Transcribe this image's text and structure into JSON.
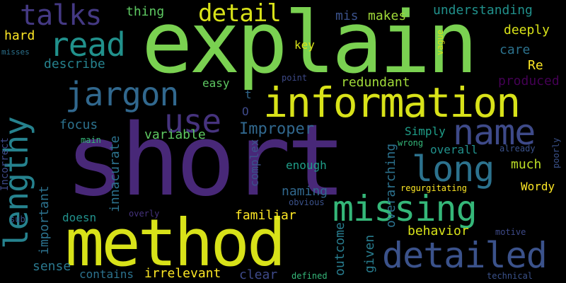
{
  "words": [
    {
      "id": "short",
      "text": "short",
      "color": "#482878"
    },
    {
      "id": "explain",
      "text": "explain",
      "color": "#7ad151"
    },
    {
      "id": "method",
      "text": "method",
      "color": "#d8e219"
    },
    {
      "id": "information",
      "text": "information",
      "color": "#d8e219"
    },
    {
      "id": "missing",
      "text": "missing",
      "color": "#35b779"
    },
    {
      "id": "detailed",
      "text": "detailed",
      "color": "#3b528b"
    },
    {
      "id": "name",
      "text": "name",
      "color": "#3e4a89"
    },
    {
      "id": "lengthy",
      "text": "lengthy",
      "color": "#26828e"
    },
    {
      "id": "jargon",
      "text": "jargon",
      "color": "#31688e"
    },
    {
      "id": "long",
      "text": "long",
      "color": "#2c728e"
    },
    {
      "id": "use",
      "text": "use",
      "color": "#46337e"
    },
    {
      "id": "read",
      "text": "read",
      "color": "#21918c"
    },
    {
      "id": "talks",
      "text": "talks",
      "color": "#443983"
    },
    {
      "id": "detail",
      "text": "detail",
      "color": "#d8e219"
    },
    {
      "id": "understanding",
      "text": "understanding",
      "color": "#21918c"
    },
    {
      "id": "deeply",
      "text": "deeply",
      "color": "#d8e219"
    },
    {
      "id": "makes",
      "text": "makes",
      "color": "#a0da39"
    },
    {
      "id": "mis",
      "text": "mis",
      "color": "#3b528b"
    },
    {
      "id": "thing",
      "text": "thing",
      "color": "#5ec962"
    },
    {
      "id": "hard",
      "text": "hard",
      "color": "#fde725"
    },
    {
      "id": "describe",
      "text": "describe",
      "color": "#26828e"
    },
    {
      "id": "misses",
      "text": "misses",
      "color": "#2c728e"
    },
    {
      "id": "key",
      "text": "key",
      "color": "#d8e219"
    },
    {
      "id": "vague",
      "text": "vague",
      "color": "#d8e219"
    },
    {
      "id": "care",
      "text": "care",
      "color": "#2c728e"
    },
    {
      "id": "Re",
      "text": "Re",
      "color": "#fde725"
    },
    {
      "id": "produced",
      "text": "produced",
      "color": "#440154"
    },
    {
      "id": "redundant",
      "text": "redundant",
      "color": "#a0da39"
    },
    {
      "id": "point",
      "text": "point",
      "color": "#3e4a89"
    },
    {
      "id": "easy",
      "text": "easy",
      "color": "#5ec962"
    },
    {
      "id": "t",
      "text": "t",
      "color": "#31688e"
    },
    {
      "id": "O",
      "text": "O",
      "color": "#3e4a89"
    },
    {
      "id": "focus",
      "text": "focus",
      "color": "#2c728e"
    },
    {
      "id": "variable",
      "text": "variable",
      "color": "#5ec962"
    },
    {
      "id": "Improper",
      "text": "Improper",
      "color": "#31688e"
    },
    {
      "id": "innacurate",
      "text": "innacurate",
      "color": "#2c728e"
    },
    {
      "id": "important",
      "text": "important",
      "color": "#2c728e"
    },
    {
      "id": "Incorrect",
      "text": "Incorrect",
      "color": "#3e4a89"
    },
    {
      "id": "main",
      "text": "main",
      "color": "#35b779"
    },
    {
      "id": "complex",
      "text": "complex",
      "color": "#3b528b"
    },
    {
      "id": "enough",
      "text": "enough",
      "color": "#1f9e89"
    },
    {
      "id": "overarching",
      "text": "overarching",
      "color": "#2c728e"
    },
    {
      "id": "Simply",
      "text": "Simply",
      "color": "#1f9e89"
    },
    {
      "id": "wrong",
      "text": "wrong",
      "color": "#35b779"
    },
    {
      "id": "overall",
      "text": "overall",
      "color": "#21918c"
    },
    {
      "id": "already",
      "text": "already",
      "color": "#3b528b"
    },
    {
      "id": "poorly",
      "text": "poorly",
      "color": "#3b528b"
    },
    {
      "id": "much",
      "text": "much",
      "color": "#bddf26"
    },
    {
      "id": "naming",
      "text": "naming",
      "color": "#31688e"
    },
    {
      "id": "regurgitating",
      "text": "regurgitating",
      "color": "#fde725"
    },
    {
      "id": "Wordy",
      "text": "Wordy",
      "color": "#fde725"
    },
    {
      "id": "obvious",
      "text": "obvious",
      "color": "#3b528b"
    },
    {
      "id": "familiar",
      "text": "familiar",
      "color": "#fde725"
    },
    {
      "id": "outcome",
      "text": "outcome",
      "color": "#287c8e"
    },
    {
      "id": "given",
      "text": "given",
      "color": "#287c8e"
    },
    {
      "id": "behavior",
      "text": "behavior",
      "color": "#d8e219"
    },
    {
      "id": "sub",
      "text": "sub",
      "color": "#3b528b"
    },
    {
      "id": "overly",
      "text": "overly",
      "color": "#46337e"
    },
    {
      "id": "doesn",
      "text": "doesn",
      "color": "#21918c"
    },
    {
      "id": "motive",
      "text": "motive",
      "color": "#3e4a89"
    },
    {
      "id": "sense",
      "text": "sense",
      "color": "#2a788e"
    },
    {
      "id": "contains",
      "text": "contains",
      "color": "#2c728e"
    },
    {
      "id": "irrelevant",
      "text": "irrelevant",
      "color": "#fde725"
    },
    {
      "id": "clear",
      "text": "clear",
      "color": "#3e4a89"
    },
    {
      "id": "defined",
      "text": "defined",
      "color": "#35b779"
    },
    {
      "id": "technical",
      "text": "technical",
      "color": "#3b528b"
    }
  ]
}
